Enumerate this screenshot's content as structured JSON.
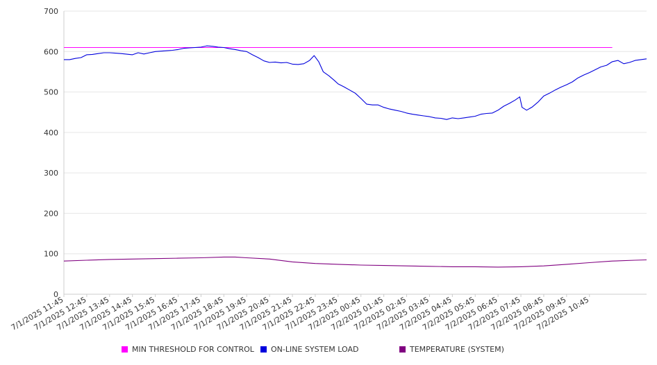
{
  "chart_data": {
    "type": "line",
    "title": "",
    "xlabel": "",
    "ylabel": "",
    "ylim": [
      0,
      700
    ],
    "yticks": [
      0,
      100,
      200,
      300,
      400,
      500,
      600,
      700
    ],
    "x_tick_labels": [
      "7/1/2025 11:45",
      "7/1/2025 12:45",
      "7/1/2025 13:45",
      "7/1/2025 14:45",
      "7/1/2025 15:45",
      "7/1/2025 16:45",
      "7/1/2025 17:45",
      "7/1/2025 18:45",
      "7/1/2025 19:45",
      "7/1/2025 20:45",
      "7/1/2025 21:45",
      "7/1/2025 22:45",
      "7/1/2025 23:45",
      "7/2/2025 00:45",
      "7/2/2025 01:45",
      "7/2/2025 02:45",
      "7/2/2025 03:45",
      "7/2/2025 04:45",
      "7/2/2025 05:45",
      "7/2/2025 06:45",
      "7/2/2025 07:45",
      "7/2/2025 08:45",
      "7/2/2025 09:45",
      "7/2/2025 10:45"
    ],
    "x_start": "7/1/2025 11:45",
    "x_end": "7/2/2025 11:45",
    "grid": "horizontal",
    "legend_position": "bottom",
    "series": [
      {
        "name": "MIN THRESHOLD FOR CONTROL",
        "color": "#ff00ff",
        "values": [
          [
            0,
            610
          ],
          [
            24,
            610
          ]
        ]
      },
      {
        "name": "ON-LINE SYSTEM LOAD",
        "color": "#0000dd",
        "values": [
          [
            0,
            580
          ],
          [
            0.25,
            580
          ],
          [
            0.5,
            583
          ],
          [
            0.75,
            585
          ],
          [
            1,
            592
          ],
          [
            1.25,
            593
          ],
          [
            1.5,
            595
          ],
          [
            1.75,
            597
          ],
          [
            2,
            597
          ],
          [
            2.25,
            596
          ],
          [
            2.5,
            595
          ],
          [
            3,
            592
          ],
          [
            3.25,
            597
          ],
          [
            3.5,
            594
          ],
          [
            3.75,
            597
          ],
          [
            4,
            600
          ],
          [
            4.25,
            601
          ],
          [
            4.5,
            602
          ],
          [
            4.75,
            603
          ],
          [
            5,
            605
          ],
          [
            5.25,
            608
          ],
          [
            5.5,
            609
          ],
          [
            6,
            611
          ],
          [
            6.25,
            614
          ],
          [
            6.5,
            613
          ],
          [
            6.75,
            611
          ],
          [
            7,
            610
          ],
          [
            7.25,
            607
          ],
          [
            7.5,
            605
          ],
          [
            7.75,
            602
          ],
          [
            8,
            600
          ],
          [
            8.25,
            592
          ],
          [
            8.5,
            585
          ],
          [
            8.75,
            577
          ],
          [
            9,
            573
          ],
          [
            9.25,
            574
          ],
          [
            9.5,
            572
          ],
          [
            9.75,
            573
          ],
          [
            10,
            569
          ],
          [
            10.25,
            568
          ],
          [
            10.5,
            570
          ],
          [
            10.75,
            578
          ],
          [
            10.95,
            590
          ],
          [
            11.15,
            575
          ],
          [
            11.35,
            550
          ],
          [
            11.6,
            540
          ],
          [
            11.85,
            528
          ],
          [
            12,
            520
          ],
          [
            12.25,
            513
          ],
          [
            12.5,
            505
          ],
          [
            12.75,
            497
          ],
          [
            13,
            484
          ],
          [
            13.25,
            470
          ],
          [
            13.5,
            468
          ],
          [
            13.75,
            468
          ],
          [
            14,
            462
          ],
          [
            14.25,
            458
          ],
          [
            14.5,
            455
          ],
          [
            14.75,
            452
          ],
          [
            15,
            448
          ],
          [
            15.25,
            445
          ],
          [
            15.5,
            443
          ],
          [
            15.75,
            441
          ],
          [
            16,
            439
          ],
          [
            16.25,
            436
          ],
          [
            16.5,
            435
          ],
          [
            16.75,
            432
          ],
          [
            17,
            436
          ],
          [
            17.25,
            434
          ],
          [
            17.5,
            436
          ],
          [
            17.75,
            438
          ],
          [
            18,
            440
          ],
          [
            18.25,
            445
          ],
          [
            18.5,
            447
          ],
          [
            18.75,
            448
          ],
          [
            19,
            455
          ],
          [
            19.25,
            465
          ],
          [
            19.5,
            472
          ],
          [
            19.75,
            480
          ],
          [
            19.95,
            488
          ],
          [
            20.05,
            462
          ],
          [
            20.25,
            455
          ],
          [
            20.5,
            463
          ],
          [
            20.75,
            475
          ],
          [
            21,
            490
          ],
          [
            21.25,
            497
          ],
          [
            21.5,
            505
          ],
          [
            21.75,
            512
          ],
          [
            22,
            518
          ],
          [
            22.25,
            525
          ],
          [
            22.5,
            535
          ],
          [
            22.75,
            542
          ],
          [
            23,
            548
          ],
          [
            23.25,
            555
          ],
          [
            23.5,
            562
          ],
          [
            23.75,
            566
          ],
          [
            24,
            575
          ],
          [
            24.25,
            578
          ],
          [
            24.5,
            570
          ],
          [
            24.75,
            573
          ],
          [
            25,
            578
          ],
          [
            25.25,
            580
          ],
          [
            25.5,
            582
          ]
        ]
      },
      {
        "name": "TEMPERATURE (SYSTEM)",
        "color": "#800080",
        "values": [
          [
            0,
            82
          ],
          [
            1,
            84
          ],
          [
            2,
            86
          ],
          [
            3,
            87
          ],
          [
            4,
            88
          ],
          [
            5,
            89
          ],
          [
            6,
            90
          ],
          [
            7,
            92
          ],
          [
            7.5,
            92
          ],
          [
            8,
            90
          ],
          [
            9,
            87
          ],
          [
            10,
            80
          ],
          [
            11,
            76
          ],
          [
            12,
            74
          ],
          [
            13,
            72
          ],
          [
            14,
            71
          ],
          [
            15,
            70
          ],
          [
            16,
            69
          ],
          [
            17,
            68
          ],
          [
            18,
            68
          ],
          [
            19,
            67
          ],
          [
            20,
            68
          ],
          [
            21,
            70
          ],
          [
            22,
            74
          ],
          [
            23,
            78
          ],
          [
            24,
            82
          ],
          [
            25,
            84
          ],
          [
            25.5,
            85
          ]
        ]
      }
    ]
  }
}
